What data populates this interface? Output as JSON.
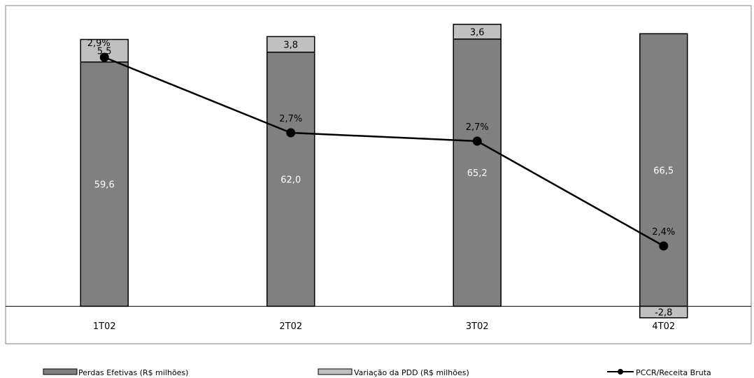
{
  "chart_data": {
    "type": "bar",
    "stacked": true,
    "categories": [
      "1T02",
      "2T02",
      "3T02",
      "4T02"
    ],
    "series": [
      {
        "name": "Perdas Efetivas (R$ milhões)",
        "values": [
          59.6,
          62.0,
          65.2,
          66.5
        ],
        "labels": [
          "59,6",
          "62,0",
          "65,2",
          "66,5"
        ],
        "color": "#808080"
      },
      {
        "name": "Variação da PDD (R$ milhões)",
        "values": [
          5.5,
          3.8,
          3.6,
          -2.8
        ],
        "labels": [
          "5,5",
          "3,8",
          "3,6",
          "-2,8"
        ],
        "color": "#c0c0c0"
      }
    ],
    "line_series": {
      "name": "PCCR/Receita Bruta",
      "values": [
        2.9,
        2.7,
        2.7,
        2.4
      ],
      "labels": [
        "2,9%",
        "2,7%",
        "2,7%",
        "2,4%"
      ],
      "color": "#000000"
    },
    "ylim": [
      -3,
      72
    ],
    "grid": false,
    "legend": "bottom"
  }
}
